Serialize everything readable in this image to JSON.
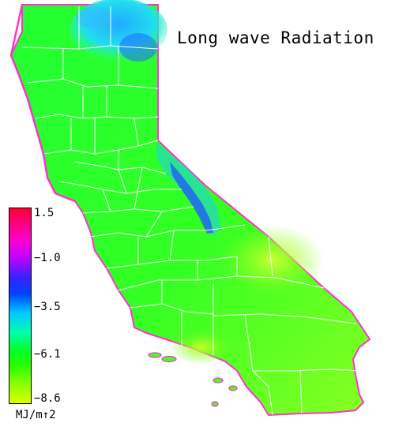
{
  "title": "Long wave Radiation",
  "legend": {
    "units": "MJ/m↑2",
    "ticks": [
      "1.5",
      "−1.0",
      "−3.5",
      "−6.1",
      "−8.6"
    ]
  },
  "colors": {
    "background": "#ffffff",
    "land_base": "#33ff22",
    "county_lines": "#ffffff",
    "coast_edge": "#ff33cc",
    "north_cool": "#22ccee",
    "sierra_blue": "#2255ff",
    "desert_warm": "#aaff33"
  },
  "map_icon": "california-county-map"
}
